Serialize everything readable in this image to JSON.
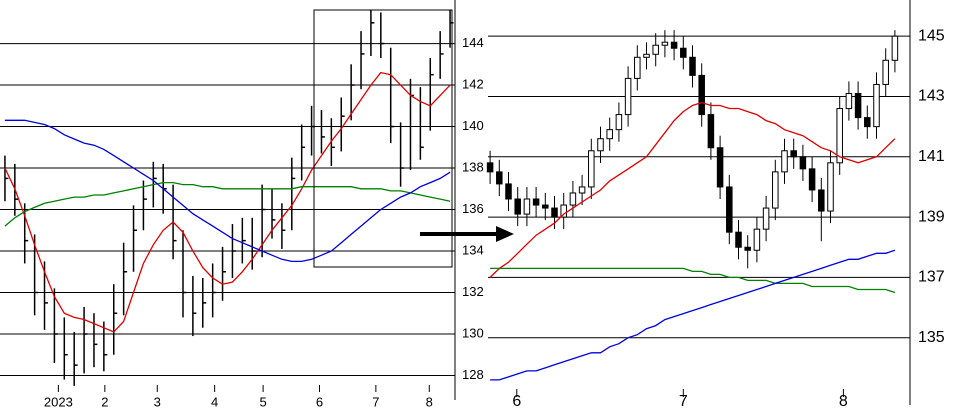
{
  "chart_data": [
    {
      "type": "hlc",
      "bar_color": "#000000",
      "xlim": [
        -0.5,
        45.5
      ],
      "xticks": [
        {
          "value": 5.4,
          "label": "2023"
        },
        {
          "value": 10.1,
          "label": "2"
        },
        {
          "value": 15.4,
          "label": "3"
        },
        {
          "value": 21.2,
          "label": "4"
        },
        {
          "value": 26.1,
          "label": "5"
        },
        {
          "value": 31.8,
          "label": "6"
        },
        {
          "value": 37.5,
          "label": "7"
        },
        {
          "value": 42.9,
          "label": "8"
        }
      ],
      "ylim": [
        127.3,
        146.1
      ],
      "yticks": [
        128,
        130,
        132,
        134,
        136,
        138,
        140,
        142,
        144
      ],
      "grid": true,
      "high": [
        138.6,
        138.2,
        136.3,
        134.8,
        133.5,
        132.2,
        130.8,
        130.1,
        131.3,
        131.0,
        130.6,
        132.4,
        134.4,
        136.2,
        137.4,
        138.3,
        138.2,
        137.2,
        135.0,
        132.8,
        132.7,
        133.4,
        134.2,
        135.3,
        135.6,
        135.6,
        137.2,
        137.0,
        136.3,
        138.5,
        140.1,
        141.0,
        140.8,
        140.4,
        141.4,
        143.0,
        144.6,
        145.6,
        145.5,
        143.8,
        140.2,
        142.3,
        141.9,
        143.3,
        144.6,
        145.6
      ],
      "low": [
        136.4,
        135.7,
        133.4,
        130.9,
        130.2,
        128.6,
        127.8,
        127.5,
        128.1,
        128.4,
        128.2,
        129.0,
        130.9,
        133.0,
        135.0,
        136.1,
        135.8,
        133.6,
        130.8,
        129.9,
        130.3,
        130.8,
        131.6,
        132.7,
        133.4,
        133.1,
        133.7,
        134.6,
        134.1,
        135.0,
        137.4,
        138.6,
        138.7,
        138.1,
        138.8,
        140.3,
        141.8,
        143.4,
        143.3,
        139.2,
        137.1,
        137.9,
        138.4,
        139.8,
        142.3,
        143.8
      ],
      "close": [
        137.5,
        136.5,
        134.5,
        132,
        131.5,
        130,
        129,
        128.5,
        130,
        129.5,
        129,
        131,
        133,
        135,
        136.5,
        137.5,
        137,
        134.5,
        132,
        131,
        131.5,
        132,
        133,
        134,
        134.5,
        134,
        136,
        135.5,
        135,
        137.5,
        139,
        140,
        139.5,
        139,
        140.5,
        142,
        143.5,
        145,
        144,
        140,
        138,
        141.5,
        139,
        142.5,
        143.5,
        145
      ],
      "lines": [
        {
          "color": "#e00000",
          "values": [
            138.0,
            137.0,
            135.7,
            134.3,
            133.0,
            131.8,
            131.0,
            130.8,
            130.7,
            130.5,
            130.3,
            130.1,
            130.6,
            132.0,
            133.4,
            134.3,
            135.0,
            135.4,
            134.9,
            134.0,
            133.2,
            132.7,
            132.4,
            132.5,
            133.0,
            133.6,
            134.3,
            135.0,
            135.6,
            136.2,
            137.0,
            137.9,
            138.6,
            139.3,
            139.9,
            140.6,
            141.3,
            142.0,
            142.6,
            142.5,
            142.0,
            141.5,
            141.2,
            141.0,
            141.5,
            142.0
          ]
        },
        {
          "color": "#008000",
          "values": [
            135.2,
            135.6,
            135.9,
            136.1,
            136.3,
            136.4,
            136.5,
            136.6,
            136.6,
            136.7,
            136.7,
            136.8,
            136.9,
            137.0,
            137.1,
            137.2,
            137.3,
            137.3,
            137.2,
            137.2,
            137.1,
            137.1,
            137.0,
            137.0,
            137.0,
            137.0,
            137.0,
            137.0,
            137.0,
            137.0,
            137.1,
            137.1,
            137.1,
            137.1,
            137.1,
            137.1,
            137.0,
            137.0,
            137.0,
            136.9,
            136.9,
            136.8,
            136.7,
            136.6,
            136.5,
            136.4
          ]
        },
        {
          "color": "#0000e0",
          "values": [
            140.3,
            140.3,
            140.3,
            140.2,
            140.1,
            139.9,
            139.6,
            139.4,
            139.2,
            139.1,
            138.9,
            138.6,
            138.3,
            138.0,
            137.7,
            137.4,
            137.0,
            136.6,
            136.2,
            135.8,
            135.5,
            135.2,
            134.9,
            134.6,
            134.4,
            134.2,
            134.0,
            133.8,
            133.6,
            133.5,
            133.5,
            133.6,
            133.8,
            134.0,
            134.4,
            134.8,
            135.2,
            135.6,
            136.0,
            136.3,
            136.6,
            136.8,
            137.1,
            137.3,
            137.5,
            137.8
          ]
        }
      ]
    },
    {
      "type": "candlestick",
      "up_color": "#ffffff",
      "down_color": "#000000",
      "xlim": [
        -0.5,
        44.5
      ],
      "xticks": [
        {
          "value": 2.9,
          "label": "6"
        },
        {
          "value": 21,
          "label": "7"
        },
        {
          "value": 38.4,
          "label": "8"
        }
      ],
      "ylim": [
        133.1,
        146.2
      ],
      "yticks": [
        135,
        137,
        139,
        141,
        143,
        145
      ],
      "grid": true,
      "open": [
        140.8,
        140.5,
        140.1,
        139.6,
        139.1,
        139.6,
        139.4,
        139.3,
        139.0,
        139.4,
        139.8,
        140.0,
        141.2,
        141.6,
        141.9,
        142.4,
        143.6,
        144.3,
        144.4,
        144.7,
        144.8,
        144.6,
        144.3,
        143.7,
        142.4,
        141.3,
        140.0,
        138.5,
        138.0,
        137.9,
        138.6,
        139.3,
        140.5,
        141.2,
        141.0,
        140.6,
        139.9,
        139.2,
        140.8,
        142.6,
        143.1,
        142.3,
        142.0,
        143.4,
        144.2
      ],
      "high": [
        141.2,
        140.9,
        140.5,
        140.0,
        140.0,
        140.0,
        139.8,
        139.7,
        139.8,
        140.2,
        140.4,
        141.6,
        142.0,
        142.3,
        142.8,
        144.0,
        144.7,
        144.8,
        145.1,
        145.2,
        145.2,
        145.0,
        144.7,
        144.1,
        142.8,
        141.7,
        140.4,
        138.9,
        138.4,
        139.0,
        139.7,
        140.9,
        141.6,
        141.6,
        141.4,
        141.0,
        140.3,
        141.2,
        143.0,
        143.5,
        143.5,
        142.7,
        143.8,
        144.6,
        145.2
      ],
      "low": [
        140.1,
        139.7,
        139.2,
        138.7,
        138.7,
        139.0,
        138.9,
        138.6,
        138.6,
        139.0,
        139.4,
        139.6,
        140.8,
        141.2,
        141.5,
        142.0,
        143.2,
        143.9,
        144.0,
        144.3,
        144.2,
        143.9,
        143.3,
        142.0,
        140.9,
        139.6,
        138.1,
        137.6,
        137.3,
        137.5,
        138.2,
        138.9,
        140.1,
        140.6,
        140.2,
        139.5,
        138.2,
        138.8,
        140.4,
        142.2,
        141.9,
        141.6,
        141.6,
        143.0,
        143.8
      ],
      "close": [
        140.5,
        140.1,
        139.6,
        139.1,
        139.6,
        139.4,
        139.3,
        139.0,
        139.4,
        139.8,
        140.0,
        141.2,
        141.6,
        141.9,
        142.4,
        143.6,
        144.3,
        144.4,
        144.7,
        144.8,
        144.6,
        144.3,
        143.7,
        142.4,
        141.3,
        140.0,
        138.5,
        138.0,
        137.9,
        138.6,
        139.3,
        140.5,
        141.2,
        141.0,
        140.6,
        139.9,
        139.2,
        140.8,
        142.6,
        143.1,
        142.3,
        142.0,
        143.4,
        144.2,
        145.0
      ],
      "lines": [
        {
          "color": "#e00000",
          "values": [
            137.0,
            137.3,
            137.5,
            137.8,
            138.1,
            138.4,
            138.6,
            138.8,
            139.1,
            139.3,
            139.5,
            139.7,
            139.9,
            140.2,
            140.4,
            140.6,
            140.8,
            141.0,
            141.4,
            141.8,
            142.2,
            142.5,
            142.7,
            142.8,
            142.7,
            142.7,
            142.6,
            142.6,
            142.5,
            142.4,
            142.2,
            142.1,
            141.9,
            141.8,
            141.7,
            141.5,
            141.3,
            141.2,
            141.0,
            140.9,
            140.8,
            140.9,
            141.0,
            141.3,
            141.6
          ]
        },
        {
          "color": "#008000",
          "values": [
            137.3,
            137.3,
            137.3,
            137.3,
            137.3,
            137.3,
            137.3,
            137.3,
            137.3,
            137.3,
            137.3,
            137.3,
            137.3,
            137.3,
            137.3,
            137.3,
            137.3,
            137.3,
            137.3,
            137.3,
            137.3,
            137.3,
            137.2,
            137.2,
            137.1,
            137.1,
            137.0,
            137.0,
            136.9,
            136.9,
            136.9,
            136.8,
            136.8,
            136.8,
            136.8,
            136.7,
            136.7,
            136.7,
            136.7,
            136.7,
            136.6,
            136.6,
            136.6,
            136.6,
            136.5
          ]
        },
        {
          "color": "#0000e0",
          "values": [
            133.6,
            133.6,
            133.7,
            133.8,
            133.9,
            133.9,
            134.0,
            134.1,
            134.2,
            134.3,
            134.4,
            134.5,
            134.5,
            134.7,
            134.8,
            135.0,
            135.1,
            135.3,
            135.4,
            135.6,
            135.7,
            135.8,
            135.9,
            136.0,
            136.1,
            136.2,
            136.3,
            136.4,
            136.5,
            136.6,
            136.7,
            136.8,
            136.9,
            137.0,
            137.1,
            137.2,
            137.3,
            137.4,
            137.5,
            137.6,
            137.6,
            137.7,
            137.8,
            137.8,
            137.9
          ]
        }
      ]
    }
  ]
}
